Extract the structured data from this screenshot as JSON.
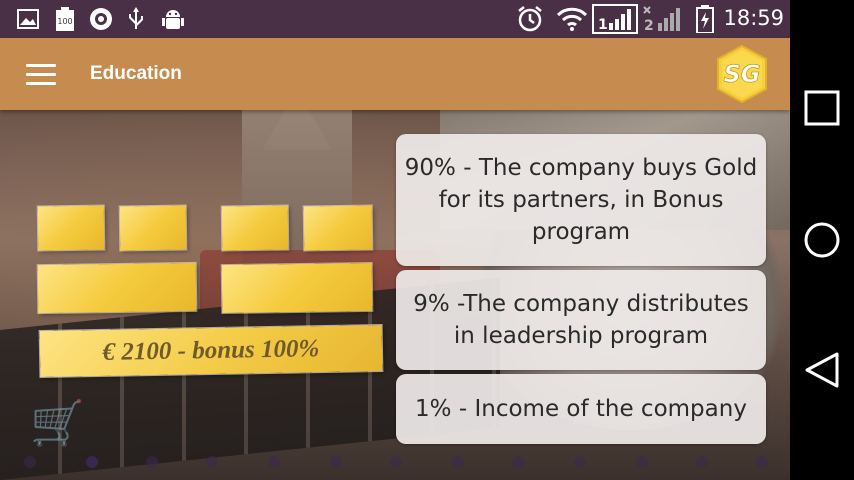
{
  "status_bar": {
    "time": "18:59",
    "icons": [
      "image-icon",
      "battery-100-icon",
      "sg-app-icon",
      "usb-icon",
      "android-debug-icon",
      "alarm-icon",
      "wifi-icon",
      "signal-sim1-icon",
      "signal-sim2-icon",
      "battery-charging-icon"
    ],
    "sim1_label": "1",
    "sim2_label": "2",
    "battery_small_label": "100"
  },
  "app_bar": {
    "title": "Education",
    "menu_icon": "hamburger-menu-icon",
    "logo_text": "SG",
    "background_color": "#c68b4f"
  },
  "main": {
    "bonus_label": "€ 2100 - bonus 100%",
    "info_boxes": [
      "90% - The company buys Gold for its partners, in Bonus program",
      "9% -The company distributes in leadership program",
      "1% - Income of the company"
    ],
    "page_dots_count": 13
  },
  "nav_bar": {
    "buttons": [
      "recent-apps-icon",
      "home-icon",
      "back-icon"
    ]
  },
  "colors": {
    "status_bar": "#4a3046",
    "gold": "#f5cb3e",
    "info_box": "#eeeae8"
  }
}
